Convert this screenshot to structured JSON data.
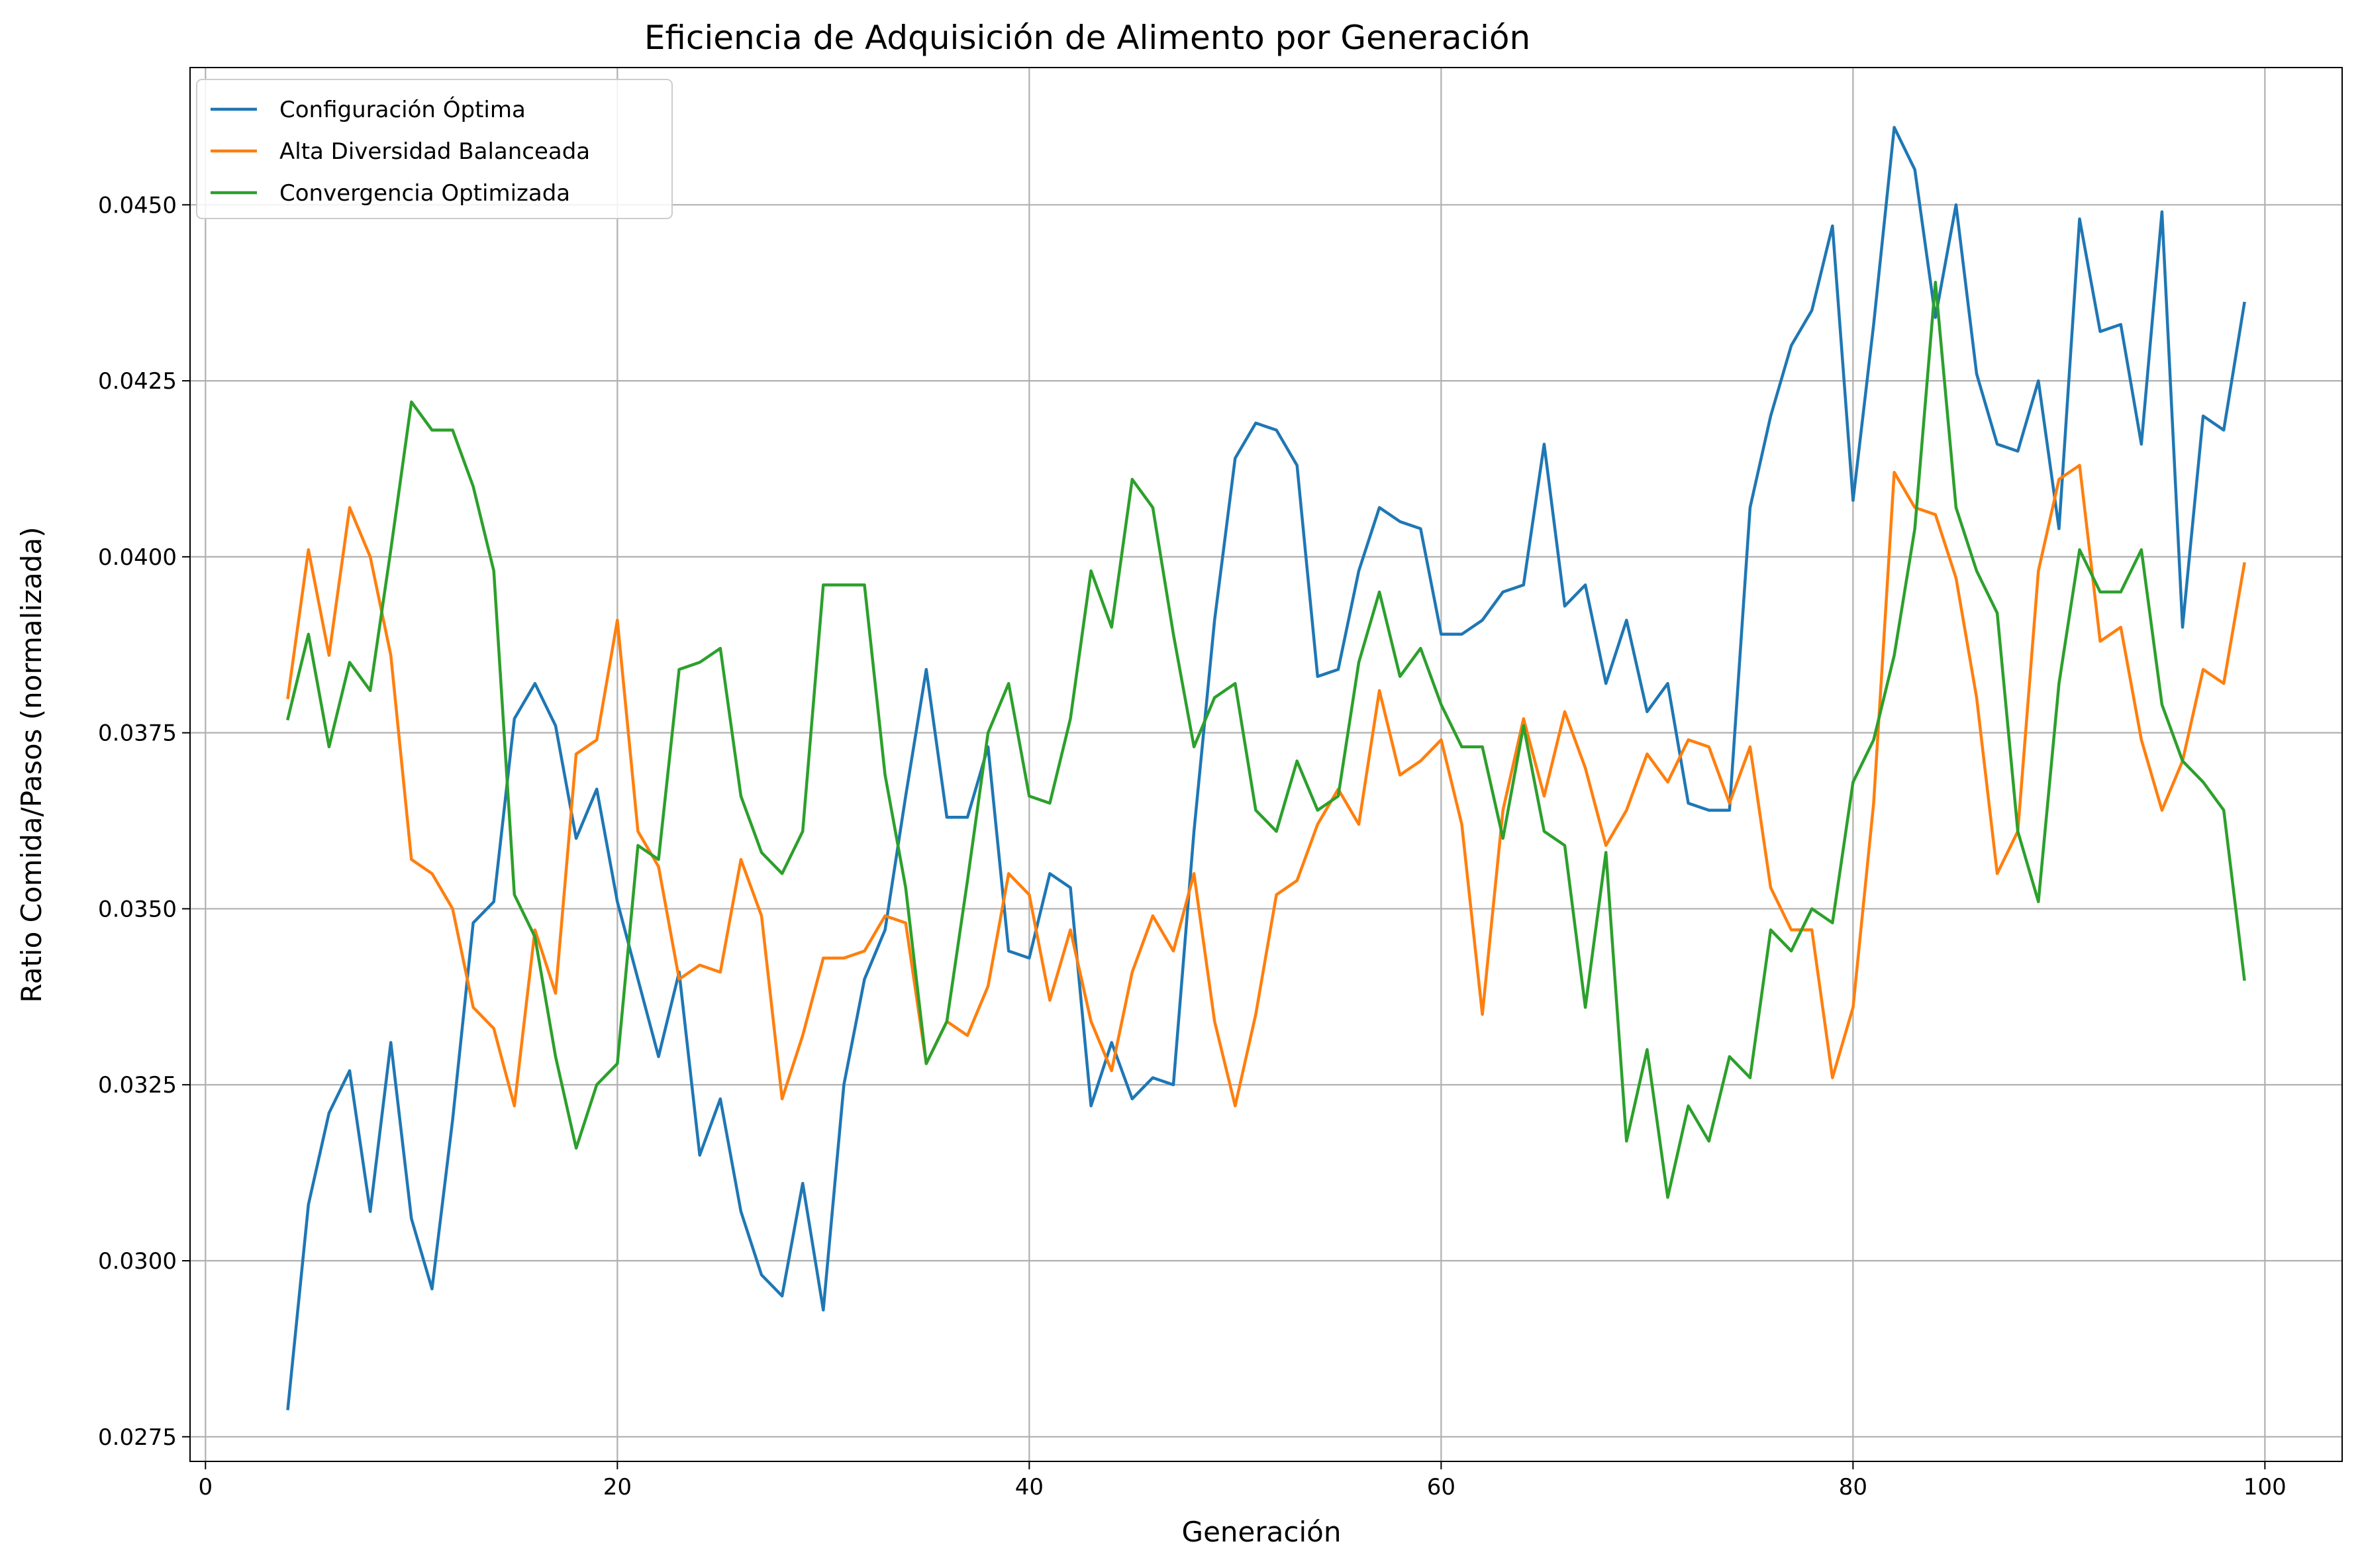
{
  "chart_data": {
    "type": "line",
    "title": "Eficiencia de Adquisición de Alimento por Generación",
    "xlabel": "Generación",
    "ylabel": "Ratio Comida/Pasos (normalizada)",
    "xlim": [
      -0.75,
      103.75
    ],
    "ylim": [
      0.02715,
      0.04695
    ],
    "xticks": [
      0,
      20,
      40,
      60,
      80,
      100
    ],
    "yticks": [
      0.0275,
      0.03,
      0.0325,
      0.035,
      0.0375,
      0.04,
      0.0425,
      0.045
    ],
    "xtick_labels": [
      "0",
      "20",
      "40",
      "60",
      "80",
      "100"
    ],
    "ytick_labels": [
      "0.0275",
      "0.0300",
      "0.0325",
      "0.0350",
      "0.0375",
      "0.0400",
      "0.0425",
      "0.0450"
    ],
    "grid": true,
    "legend_position": "top-left",
    "x_start": 4,
    "series": [
      {
        "name": "Configuración Óptima",
        "color": "#1f77b4",
        "values": [
          0.0279,
          0.0308,
          0.0321,
          0.0327,
          0.0307,
          0.0331,
          0.0306,
          0.0296,
          0.032,
          0.0348,
          0.0351,
          0.0377,
          0.0382,
          0.0376,
          0.036,
          0.0367,
          0.0351,
          0.034,
          0.0329,
          0.0341,
          0.0315,
          0.0323,
          0.0307,
          0.0298,
          0.0295,
          0.0311,
          0.0293,
          0.0325,
          0.034,
          0.0347,
          0.0366,
          0.0384,
          0.0363,
          0.0363,
          0.0373,
          0.0344,
          0.0343,
          0.0355,
          0.0353,
          0.0322,
          0.0331,
          0.0323,
          0.0326,
          0.0325,
          0.0361,
          0.0391,
          0.0414,
          0.0419,
          0.0418,
          0.0413,
          0.0383,
          0.0384,
          0.0398,
          0.0407,
          0.0405,
          0.0404,
          0.0389,
          0.0389,
          0.0391,
          0.0395,
          0.0396,
          0.0416,
          0.0393,
          0.0396,
          0.0382,
          0.0391,
          0.0378,
          0.0382,
          0.0365,
          0.0364,
          0.0364,
          0.0407,
          0.042,
          0.043,
          0.0435,
          0.0447,
          0.0408,
          0.0433,
          0.0461,
          0.0455,
          0.0434,
          0.045,
          0.0426,
          0.0416,
          0.0415,
          0.0425,
          0.0404,
          0.0448,
          0.0432,
          0.0433,
          0.0416,
          0.0449,
          0.039,
          0.042,
          0.0418,
          0.0436
        ]
      },
      {
        "name": "Alta Diversidad Balanceada",
        "color": "#ff7f0e",
        "values": [
          0.038,
          0.0401,
          0.0386,
          0.0407,
          0.04,
          0.0386,
          0.0357,
          0.0355,
          0.035,
          0.0336,
          0.0333,
          0.0322,
          0.0347,
          0.0338,
          0.0372,
          0.0374,
          0.0391,
          0.0361,
          0.0356,
          0.034,
          0.0342,
          0.0341,
          0.0357,
          0.0349,
          0.0323,
          0.0332,
          0.0343,
          0.0343,
          0.0344,
          0.0349,
          0.0348,
          0.0328,
          0.0334,
          0.0332,
          0.0339,
          0.0355,
          0.0352,
          0.0337,
          0.0347,
          0.0334,
          0.0327,
          0.0341,
          0.0349,
          0.0344,
          0.0355,
          0.0334,
          0.0322,
          0.0335,
          0.0352,
          0.0354,
          0.0362,
          0.0367,
          0.0362,
          0.0381,
          0.0369,
          0.0371,
          0.0374,
          0.0362,
          0.0335,
          0.0364,
          0.0377,
          0.0366,
          0.0378,
          0.037,
          0.0359,
          0.0364,
          0.0372,
          0.0368,
          0.0374,
          0.0373,
          0.0365,
          0.0373,
          0.0353,
          0.0347,
          0.0347,
          0.0326,
          0.0336,
          0.0365,
          0.0412,
          0.0407,
          0.0406,
          0.0397,
          0.038,
          0.0355,
          0.0361,
          0.0398,
          0.0411,
          0.0413,
          0.0388,
          0.039,
          0.0374,
          0.0364,
          0.0371,
          0.0384,
          0.0382,
          0.0399
        ]
      },
      {
        "name": "Convergencia Optimizada",
        "color": "#2ca02c",
        "values": [
          0.0377,
          0.0389,
          0.0373,
          0.0385,
          0.0381,
          0.0401,
          0.0422,
          0.0418,
          0.0418,
          0.041,
          0.0398,
          0.0352,
          0.0346,
          0.0329,
          0.0316,
          0.0325,
          0.0328,
          0.0359,
          0.0357,
          0.0384,
          0.0385,
          0.0387,
          0.0366,
          0.0358,
          0.0355,
          0.0361,
          0.0396,
          0.0396,
          0.0396,
          0.0369,
          0.0353,
          0.0328,
          0.0334,
          0.0354,
          0.0375,
          0.0382,
          0.0366,
          0.0365,
          0.0377,
          0.0398,
          0.039,
          0.0411,
          0.0407,
          0.0389,
          0.0373,
          0.038,
          0.0382,
          0.0364,
          0.0361,
          0.0371,
          0.0364,
          0.0366,
          0.0385,
          0.0395,
          0.0383,
          0.0387,
          0.0379,
          0.0373,
          0.0373,
          0.036,
          0.0376,
          0.0361,
          0.0359,
          0.0336,
          0.0358,
          0.0317,
          0.033,
          0.0309,
          0.0322,
          0.0317,
          0.0329,
          0.0326,
          0.0347,
          0.0344,
          0.035,
          0.0348,
          0.0368,
          0.0374,
          0.0386,
          0.0404,
          0.0439,
          0.0407,
          0.0398,
          0.0392,
          0.0361,
          0.0351,
          0.0382,
          0.0401,
          0.0395,
          0.0395,
          0.0401,
          0.0379,
          0.0371,
          0.0368,
          0.0364,
          0.034
        ]
      }
    ]
  }
}
